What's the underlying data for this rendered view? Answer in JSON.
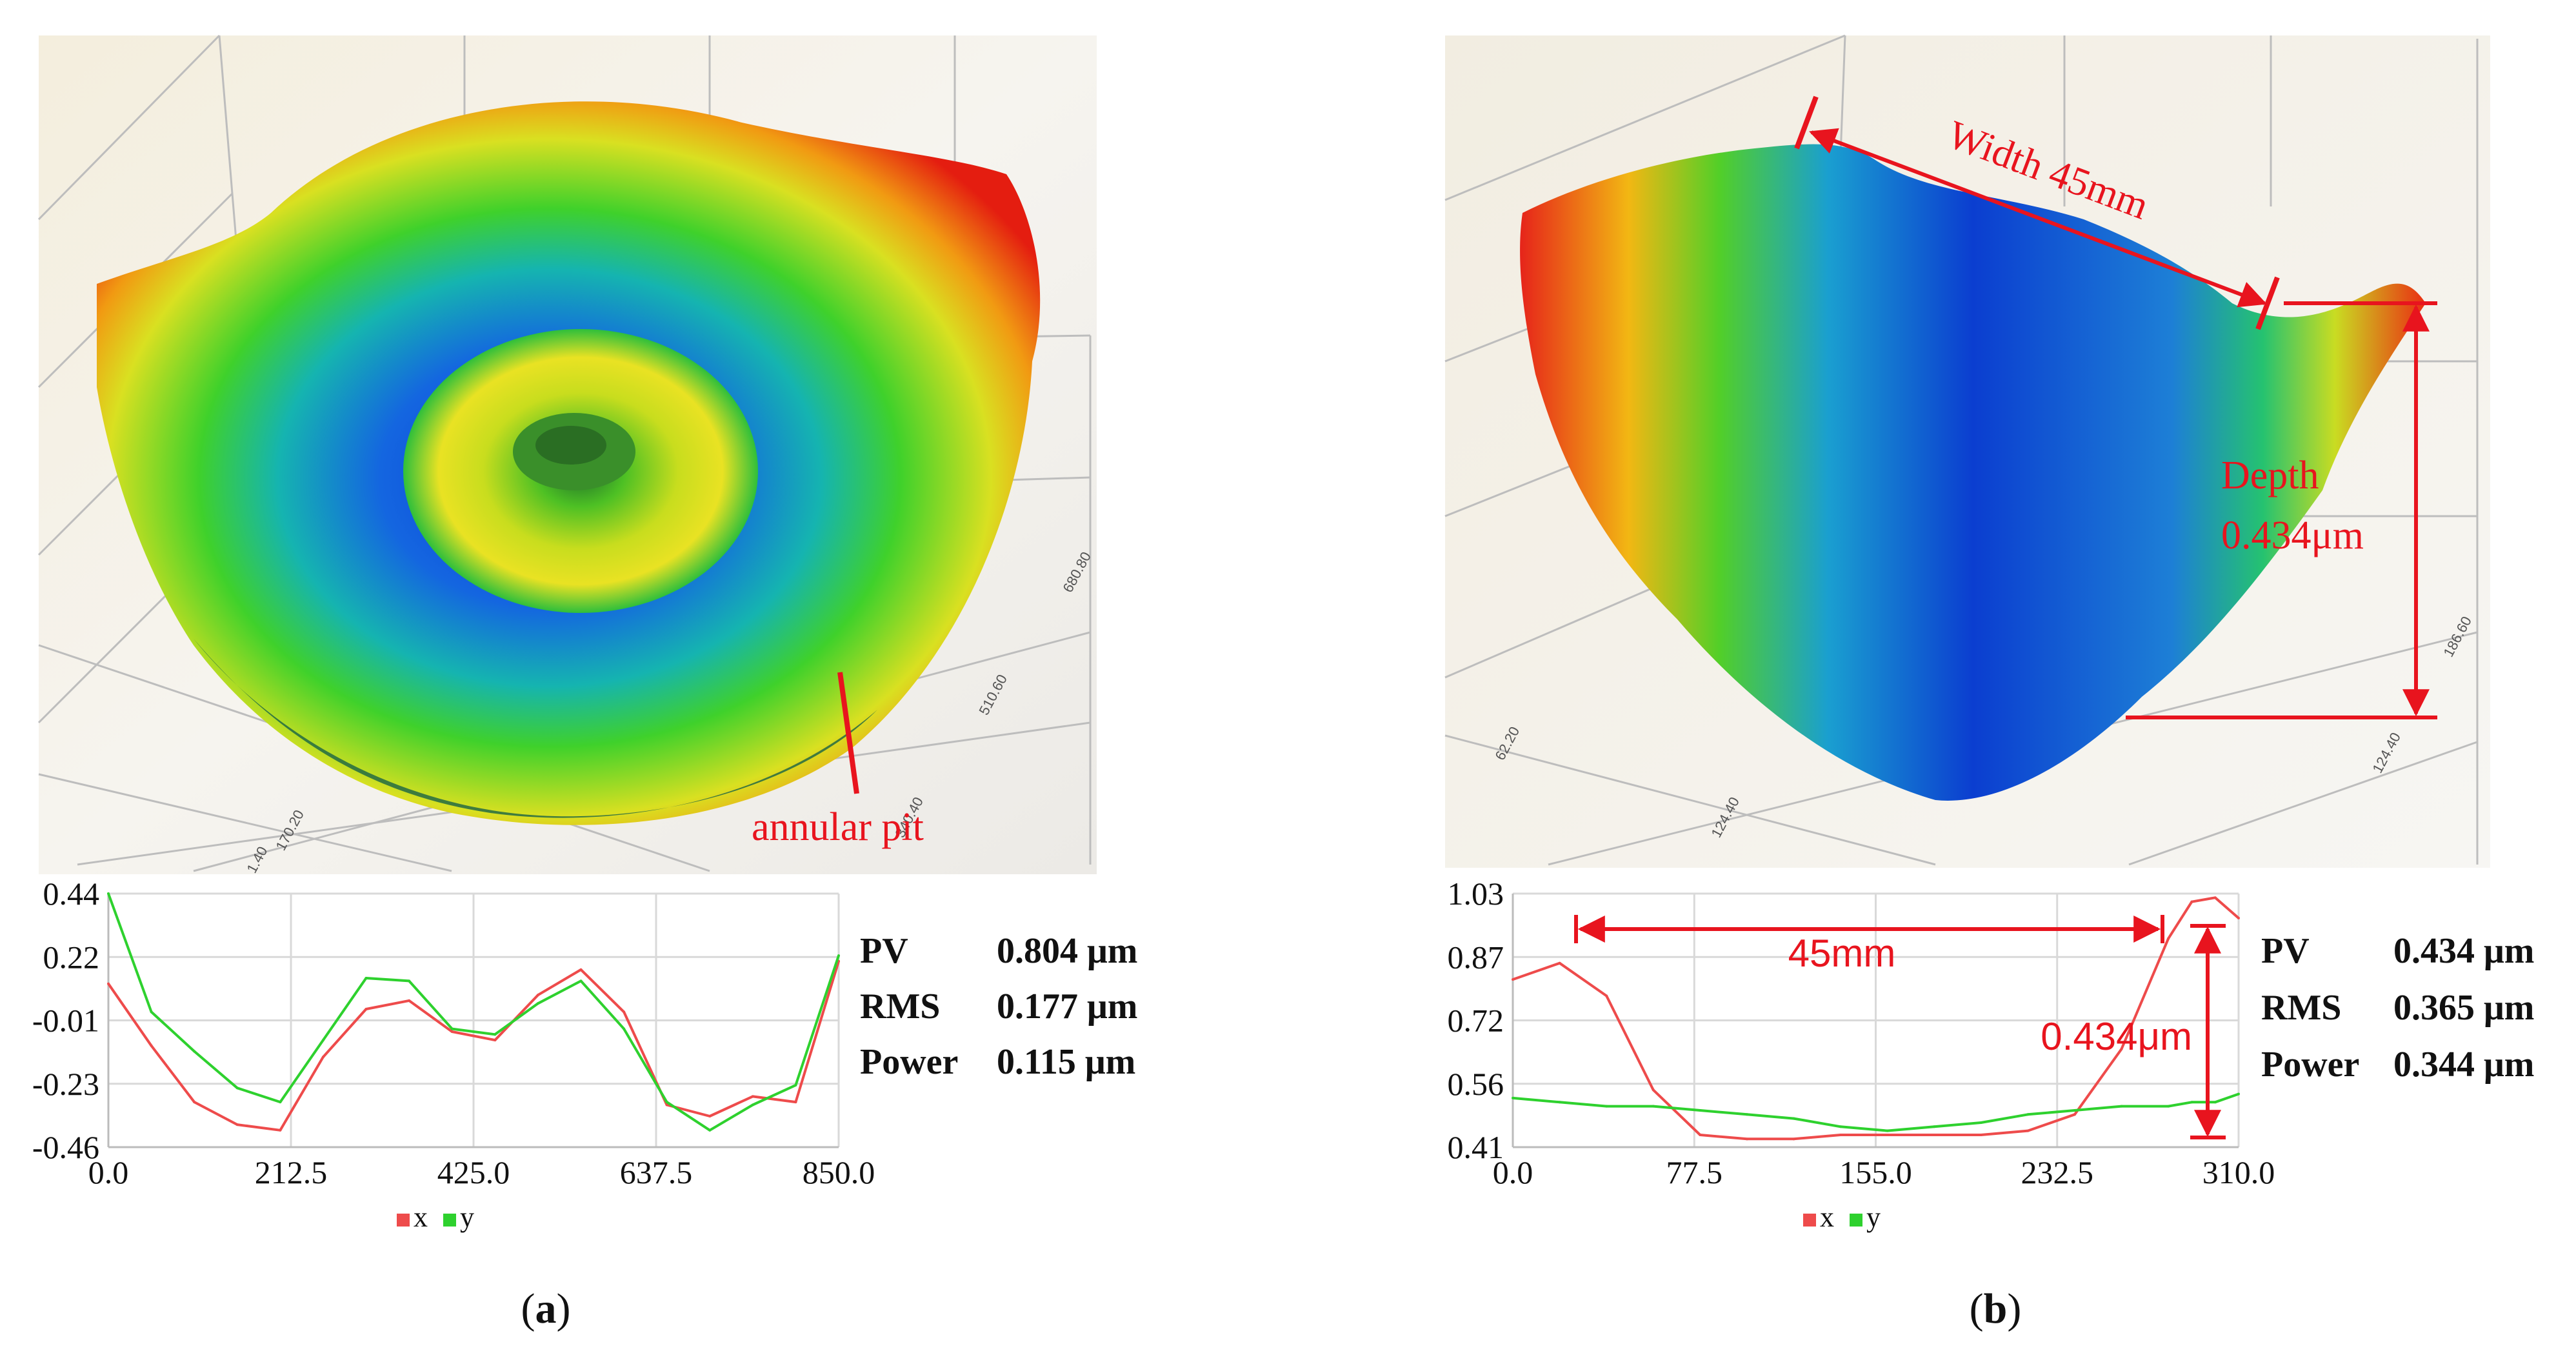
{
  "colors": {
    "annotation": "#e8141e",
    "series_x": "#ee4b4b",
    "series_y": "#2ed12e",
    "grid": "#d9d9d9",
    "text": "#111111"
  },
  "panels": [
    {
      "id": "a",
      "caption": "(a)",
      "caption_letter": "a",
      "surface_labels": {
        "tick_1": "170.20",
        "tick_2": "340.40",
        "tick_3": "510.60",
        "tick_4": "680.80",
        "tick_5": "1.40",
        "annotation": "annular pit"
      },
      "stats": [
        {
          "name": "PV",
          "value": "0.804 μm"
        },
        {
          "name": "RMS",
          "value": "0.177 μm"
        },
        {
          "name": "Power",
          "value": "0.115 μm"
        }
      ],
      "legend": [
        "x",
        "y"
      ]
    },
    {
      "id": "b",
      "caption": "(b)",
      "caption_letter": "b",
      "surface_labels": {
        "tick_1": "62.20",
        "tick_2": "124.40",
        "tick_3": "186.60",
        "tick_4": "124.40",
        "annotation_width": "Width 45mm",
        "annotation_depth_1": "Depth",
        "annotation_depth_2": "0.434μm"
      },
      "profile_annotations": {
        "span": "45mm",
        "depth": "0.434μm"
      },
      "stats": [
        {
          "name": "PV",
          "value": "0.434 μm"
        },
        {
          "name": "RMS",
          "value": "0.365 μm"
        },
        {
          "name": "Power",
          "value": "0.344 μm"
        }
      ],
      "legend": [
        "x",
        "y"
      ]
    }
  ],
  "chart_data": [
    {
      "type": "line",
      "title": "",
      "xlabel": "",
      "ylabel": "",
      "xlim": [
        0,
        850
      ],
      "ylim": [
        -0.46,
        0.44
      ],
      "x_ticks": [
        "0.0",
        "212.5",
        "425.0",
        "637.5",
        "850.0"
      ],
      "y_ticks": [
        "0.44",
        "0.22",
        "-0.01",
        "-0.23",
        "-0.46"
      ],
      "x": [
        0,
        50,
        100,
        150,
        200,
        250,
        300,
        350,
        400,
        450,
        500,
        550,
        600,
        650,
        700,
        750,
        800,
        850
      ],
      "series": [
        {
          "name": "x",
          "values": [
            0.12,
            -0.1,
            -0.3,
            -0.38,
            -0.4,
            -0.14,
            0.03,
            0.06,
            -0.05,
            -0.08,
            0.08,
            0.17,
            0.02,
            -0.31,
            -0.35,
            -0.28,
            -0.3,
            0.2
          ]
        },
        {
          "name": "y",
          "values": [
            0.44,
            0.02,
            -0.12,
            -0.25,
            -0.3,
            -0.08,
            0.14,
            0.13,
            -0.04,
            -0.06,
            0.05,
            0.13,
            -0.04,
            -0.3,
            -0.4,
            -0.31,
            -0.24,
            0.22
          ]
        }
      ],
      "legend_position": "bottom"
    },
    {
      "type": "line",
      "title": "",
      "xlabel": "",
      "ylabel": "",
      "xlim": [
        0,
        310
      ],
      "ylim": [
        0.41,
        1.03
      ],
      "x_ticks": [
        "0.0",
        "77.5",
        "155.0",
        "232.5",
        "310.0"
      ],
      "y_ticks": [
        "1.03",
        "0.87",
        "0.72",
        "0.56",
        "0.41"
      ],
      "x": [
        0,
        20,
        40,
        60,
        80,
        100,
        120,
        140,
        160,
        180,
        200,
        220,
        240,
        260,
        280,
        290,
        300,
        310
      ],
      "series": [
        {
          "name": "x",
          "values": [
            0.82,
            0.86,
            0.78,
            0.55,
            0.44,
            0.43,
            0.43,
            0.44,
            0.44,
            0.44,
            0.44,
            0.45,
            0.49,
            0.65,
            0.92,
            1.01,
            1.02,
            0.97
          ]
        },
        {
          "name": "y",
          "values": [
            0.53,
            0.52,
            0.51,
            0.51,
            0.5,
            0.49,
            0.48,
            0.46,
            0.45,
            0.46,
            0.47,
            0.49,
            0.5,
            0.51,
            0.51,
            0.52,
            0.52,
            0.54
          ]
        }
      ],
      "legend_position": "bottom"
    }
  ]
}
